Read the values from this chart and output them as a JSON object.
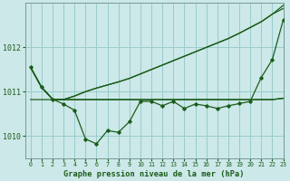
{
  "title": "Graphe pression niveau de la mer (hPa)",
  "background_color": "#cce8e8",
  "grid_color": "#99cccc",
  "line_color": "#1a5c1a",
  "xlim": [
    -0.5,
    23
  ],
  "ylim": [
    1009.5,
    1013.0
  ],
  "yticks": [
    1010,
    1011,
    1012
  ],
  "xticks": [
    0,
    1,
    2,
    3,
    4,
    5,
    6,
    7,
    8,
    9,
    10,
    11,
    12,
    13,
    14,
    15,
    16,
    17,
    18,
    19,
    20,
    21,
    22,
    23
  ],
  "series": {
    "main": [
      1011.55,
      1011.1,
      1010.83,
      1010.72,
      1010.58,
      1009.93,
      1009.82,
      1010.12,
      1010.08,
      1010.32,
      1010.78,
      1010.78,
      1010.68,
      1010.78,
      1010.62,
      1010.72,
      1010.68,
      1010.62,
      1010.68,
      1010.73,
      1010.78,
      1011.32,
      1011.72,
      1012.62
    ],
    "upper1": [
      1011.55,
      1011.1,
      1010.83,
      1010.82,
      1010.9,
      1011.0,
      1011.08,
      1011.15,
      1011.22,
      1011.3,
      1011.4,
      1011.5,
      1011.6,
      1011.7,
      1011.8,
      1011.9,
      1012.0,
      1012.1,
      1012.2,
      1012.32,
      1012.45,
      1012.58,
      1012.75,
      1012.88
    ],
    "upper2": [
      1011.55,
      1011.1,
      1010.83,
      1010.82,
      1010.9,
      1011.0,
      1011.08,
      1011.15,
      1011.22,
      1011.3,
      1011.4,
      1011.5,
      1011.6,
      1011.7,
      1011.8,
      1011.9,
      1012.0,
      1012.1,
      1012.2,
      1012.32,
      1012.45,
      1012.58,
      1012.75,
      1012.95
    ],
    "flat": [
      1010.82,
      1010.82,
      1010.82,
      1010.82,
      1010.82,
      1010.82,
      1010.82,
      1010.82,
      1010.82,
      1010.82,
      1010.82,
      1010.82,
      1010.82,
      1010.82,
      1010.82,
      1010.82,
      1010.82,
      1010.82,
      1010.82,
      1010.82,
      1010.82,
      1010.82,
      1010.82,
      1010.85
    ],
    "lower": [
      1011.55,
      1011.1,
      1010.83,
      1010.82,
      1010.82,
      1010.82,
      1010.82,
      1010.82,
      1010.82,
      1010.82,
      1010.82,
      1010.82,
      1010.82,
      1010.82,
      1010.82,
      1010.82,
      1010.82,
      1010.82,
      1010.82,
      1010.82,
      1010.82,
      1010.82,
      1010.82,
      1010.85
    ]
  }
}
